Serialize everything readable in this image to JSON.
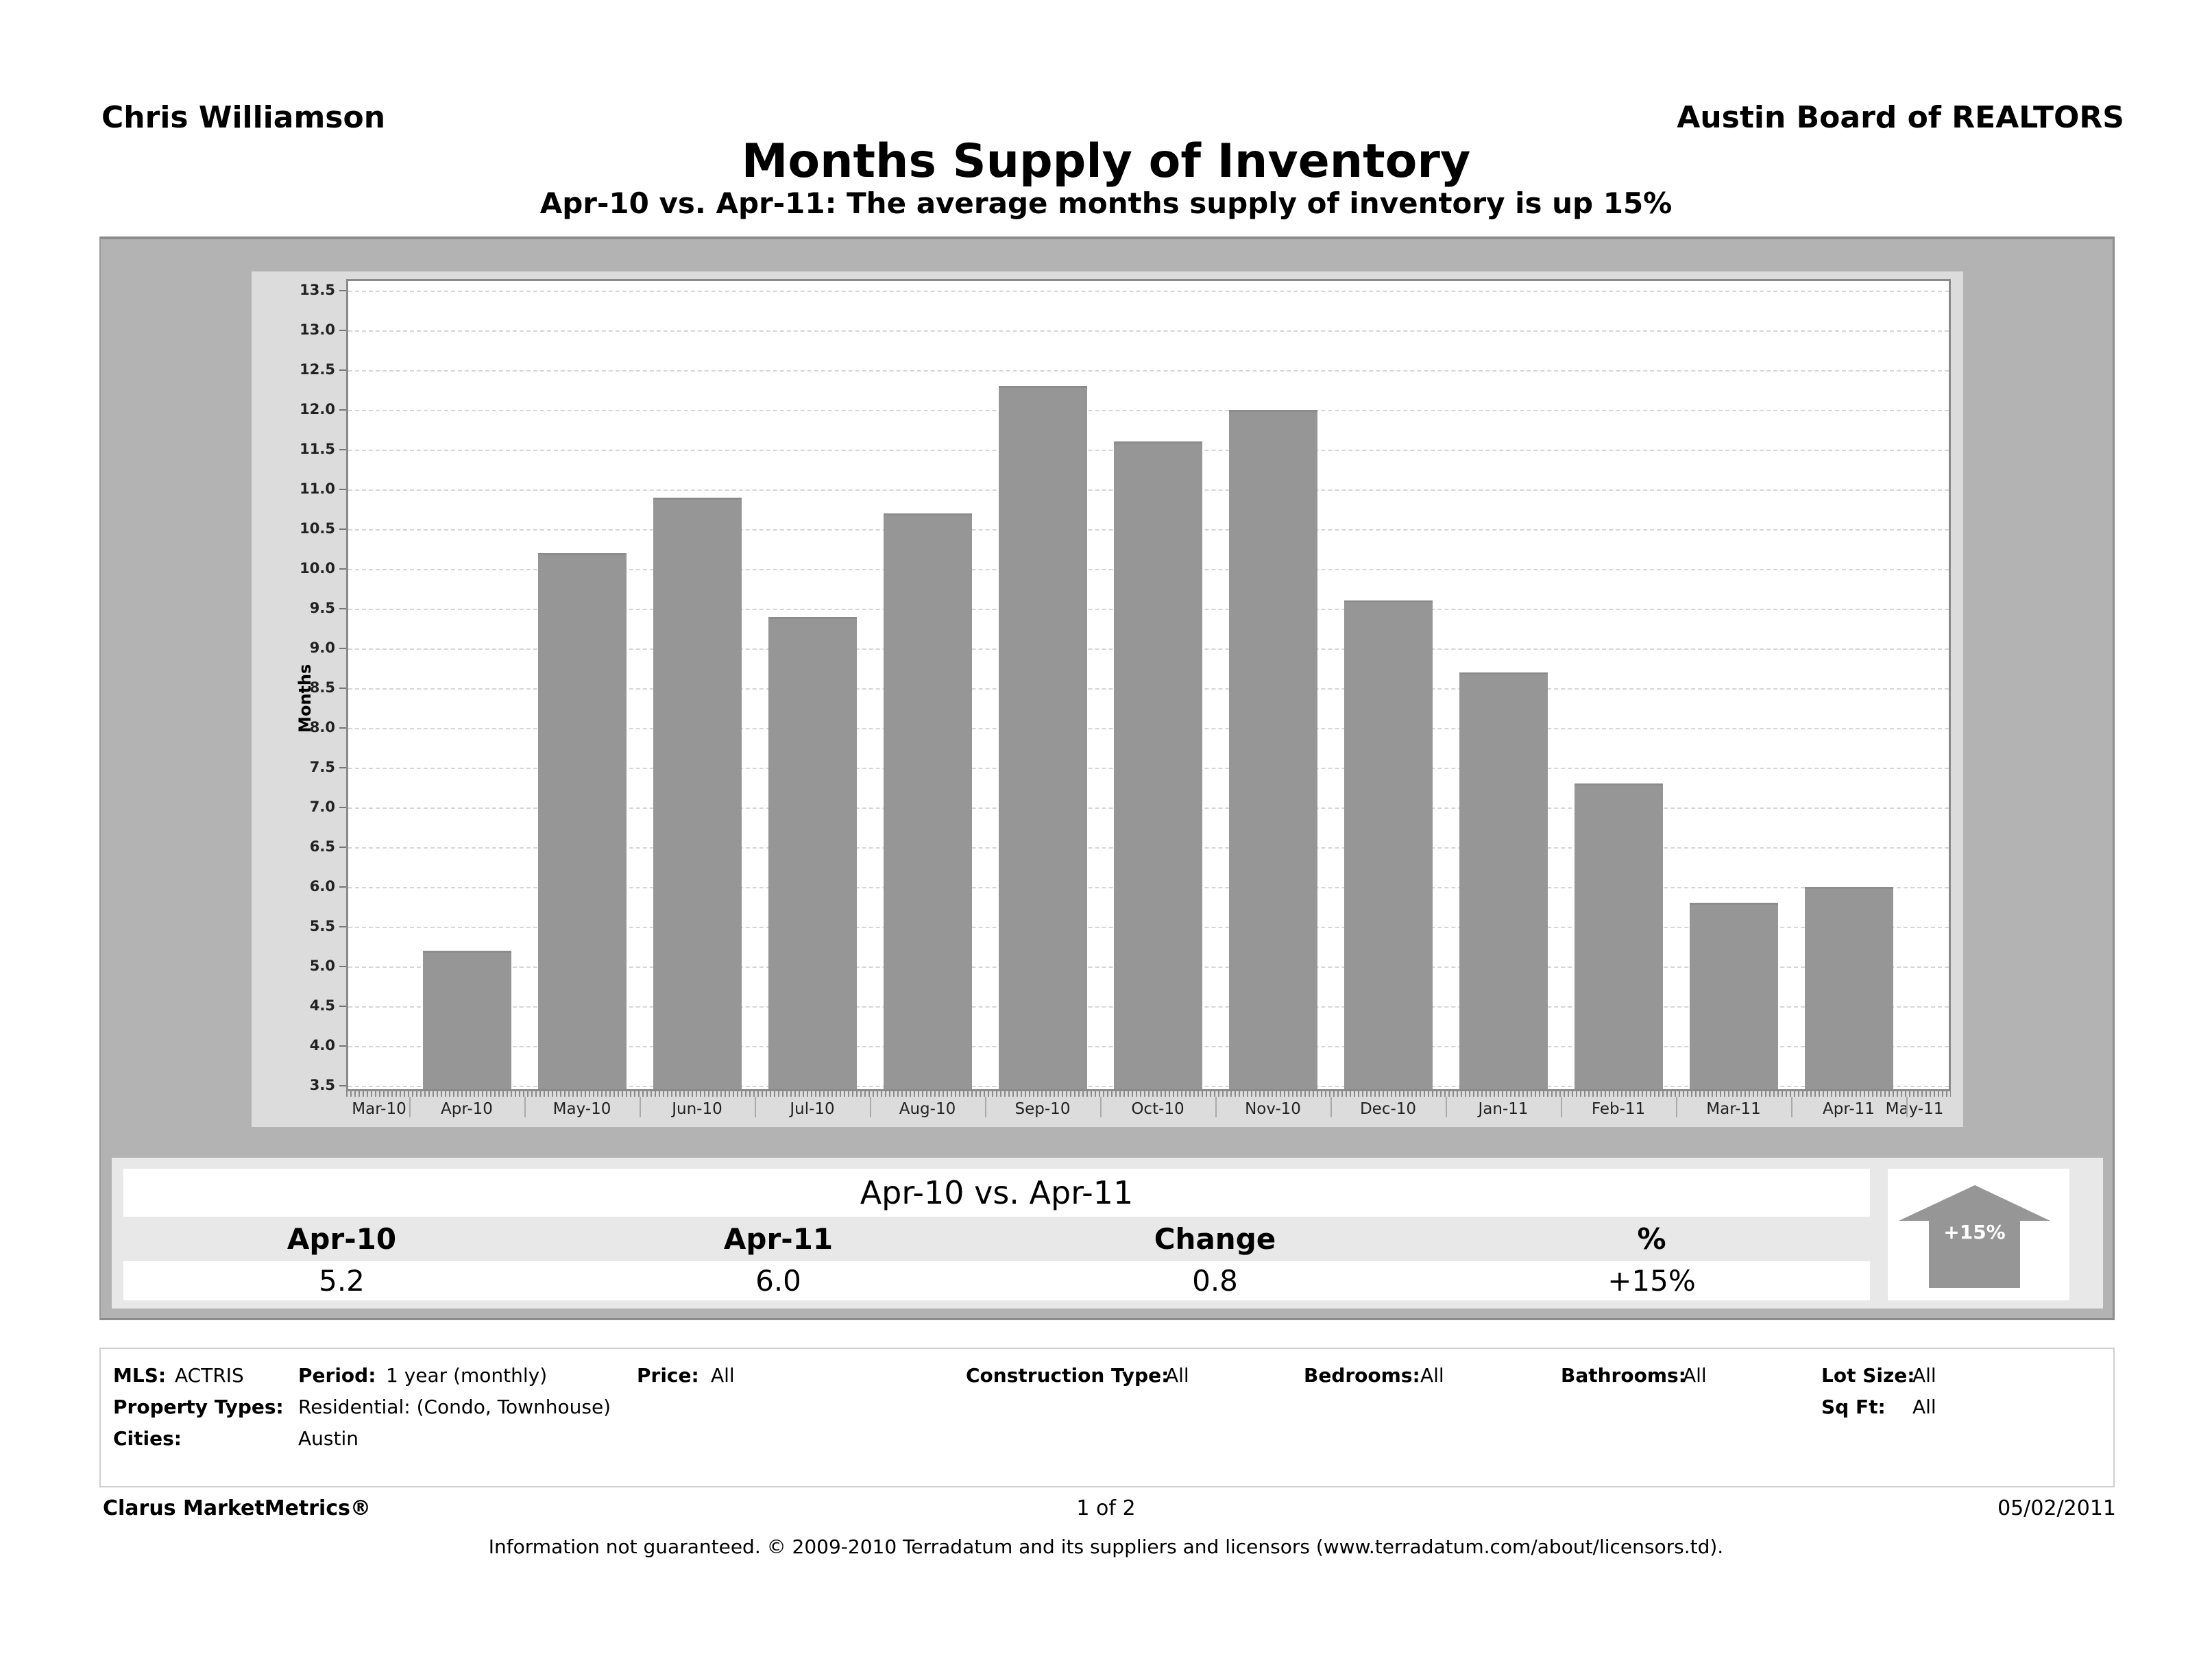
{
  "header": {
    "agent_name": "Chris Williamson",
    "organization": "Austin Board of REALTORS",
    "title": "Months Supply of Inventory",
    "subtitle": "Apr-10 vs. Apr-11:  The average months supply of inventory is up 15%"
  },
  "chart_data": {
    "type": "bar",
    "title": "Months Supply of Inventory",
    "xlabel": "",
    "ylabel": "Months",
    "ylim": [
      3.5,
      13.5
    ],
    "yticks": [
      "3.5",
      "4.0",
      "4.5",
      "5.0",
      "5.5",
      "6.0",
      "6.5",
      "7.0",
      "7.5",
      "8.0",
      "8.5",
      "9.0",
      "9.5",
      "10.0",
      "10.5",
      "11.0",
      "11.5",
      "12.0",
      "12.5",
      "13.0",
      "13.5"
    ],
    "x_tick_labels": [
      "Mar-10",
      "Apr-10",
      "May-10",
      "Jun-10",
      "Jul-10",
      "Aug-10",
      "Sep-10",
      "Oct-10",
      "Nov-10",
      "Dec-10",
      "Jan-11",
      "Feb-11",
      "Mar-11",
      "Apr-11",
      "May-11"
    ],
    "categories": [
      "Apr-10",
      "May-10",
      "Jun-10",
      "Jul-10",
      "Aug-10",
      "Sep-10",
      "Oct-10",
      "Nov-10",
      "Dec-10",
      "Jan-11",
      "Feb-11",
      "Mar-11",
      "Apr-11"
    ],
    "values": [
      5.2,
      10.2,
      10.9,
      9.4,
      10.7,
      12.3,
      11.6,
      12.0,
      9.6,
      8.7,
      7.3,
      5.8,
      6.0
    ],
    "grid": true,
    "legend": null,
    "bar_color": "#969696"
  },
  "summary": {
    "title": "Apr-10 vs. Apr-11",
    "headers": [
      "Apr-10",
      "Apr-11",
      "Change",
      "%"
    ],
    "values": [
      "5.2",
      "6.0",
      "0.8",
      "+15%"
    ],
    "arrow_label": "+15%",
    "arrow_direction": "up"
  },
  "filters": {
    "mls": {
      "label": "MLS:",
      "value": "ACTRIS"
    },
    "period": {
      "label": "Period:",
      "value": "1 year (monthly)"
    },
    "price": {
      "label": "Price:",
      "value": "All"
    },
    "construction_type": {
      "label": "Construction Type:",
      "value": "All"
    },
    "bedrooms": {
      "label": "Bedrooms:",
      "value": "All"
    },
    "bathrooms": {
      "label": "Bathrooms:",
      "value": "All"
    },
    "lot_size": {
      "label": "Lot Size:",
      "value": "All"
    },
    "property_types": {
      "label": "Property Types:",
      "value": "Residential: (Condo, Townhouse)"
    },
    "sq_ft": {
      "label": "Sq Ft:",
      "value": "All"
    },
    "cities": {
      "label": "Cities:",
      "value": "Austin"
    }
  },
  "footer": {
    "brand": "Clarus MarketMetrics®",
    "page": "1 of 2",
    "date": "05/02/2011",
    "disclaimer": "Information not guaranteed.  © 2009-2010 Terradatum and its suppliers and licensors (www.terradatum.com/about/licensors.td)."
  }
}
